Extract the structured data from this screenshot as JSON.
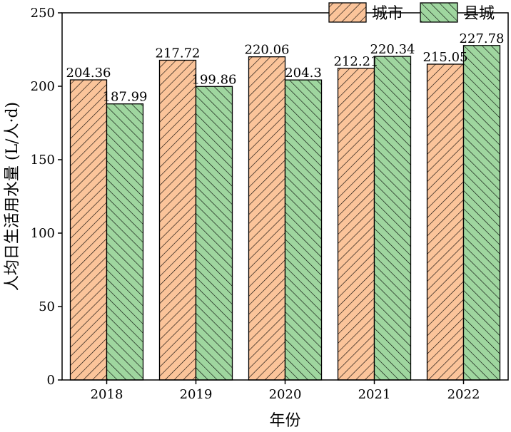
{
  "chart_data": {
    "type": "bar",
    "categories": [
      "2018",
      "2019",
      "2020",
      "2021",
      "2022"
    ],
    "series": [
      {
        "name": "城市",
        "values": [
          204.36,
          217.72,
          220.06,
          212.21,
          215.05
        ],
        "data_labels": [
          "204.36",
          "217.72",
          "220.06",
          "212.21",
          "215.05"
        ],
        "fill": "#fbc49a"
      },
      {
        "name": "县城",
        "values": [
          187.99,
          199.86,
          204.3,
          220.34,
          227.78
        ],
        "data_labels": [
          "187.99",
          "199.86",
          "204.3",
          "220.34",
          "227.78"
        ],
        "fill": "#9fd69f"
      }
    ],
    "xlabel": "年份",
    "ylabel": "人均日生活用水量 (L/人·d)",
    "ylim": [
      0,
      250
    ],
    "yticks": [
      "0",
      "50",
      "100",
      "150",
      "200",
      "250"
    ],
    "legend_position": "top-right",
    "grid": false
  }
}
